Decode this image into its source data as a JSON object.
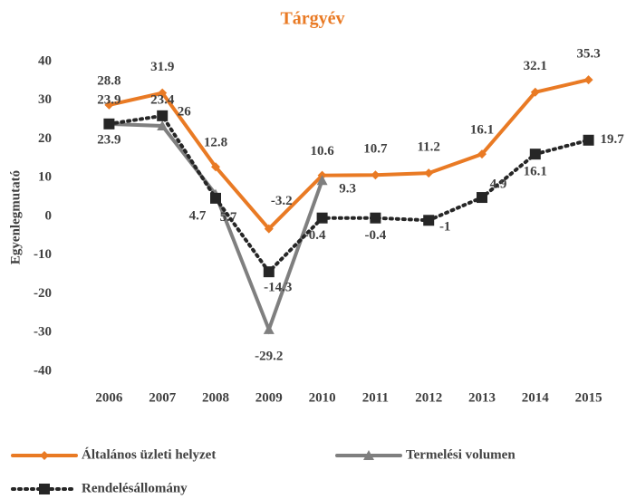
{
  "chart_data": {
    "type": "line",
    "title": "Tárgyév",
    "y_label": "Egyenlegmutató",
    "categories": [
      "2006",
      "2007",
      "2008",
      "2009",
      "2010",
      "2011",
      "2012",
      "2013",
      "2014",
      "2015"
    ],
    "ylim": [
      -40,
      40
    ],
    "yticks": [
      -40,
      -30,
      -20,
      -10,
      0,
      10,
      20,
      30,
      40
    ],
    "grid": false,
    "series": [
      {
        "name": "Általános üzleti helyzet",
        "color": "#e97a24",
        "marker": "diamond",
        "dash": "solid",
        "values": [
          28.8,
          31.9,
          12.8,
          -3.2,
          10.6,
          10.7,
          11.2,
          16.1,
          32.1,
          35.3
        ]
      },
      {
        "name": "Termelési volumen",
        "color": "#7f7f7f",
        "marker": "triangle",
        "dash": "solid",
        "values": [
          23.9,
          23.4,
          5.7,
          -29.2,
          9.3,
          null,
          null,
          null,
          null,
          null
        ]
      },
      {
        "name": "Rendelésállomány",
        "color": "#262626",
        "marker": "square",
        "dash": "dotted",
        "values": [
          23.9,
          26.0,
          4.7,
          -14.3,
          -0.4,
          -0.4,
          -1.0,
          4.9,
          16.1,
          19.7
        ]
      }
    ]
  }
}
